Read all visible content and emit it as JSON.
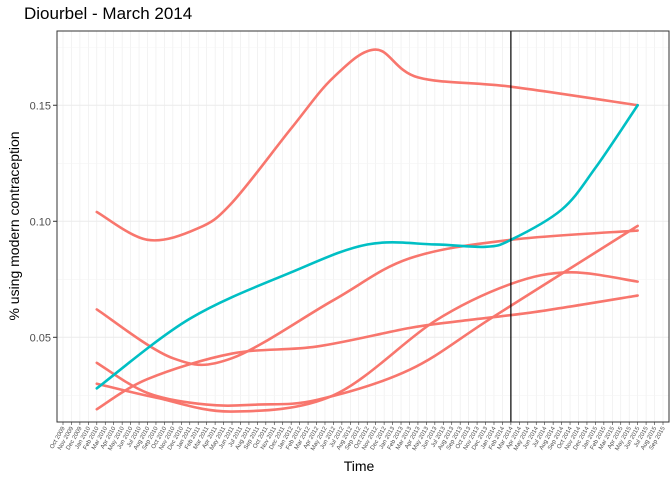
{
  "chart_data": {
    "type": "line",
    "title": "Diourbel - March 2014",
    "xlabel": "Time",
    "ylabel": "% using modern contraception",
    "ylim": [
      0.0135,
      0.182
    ],
    "xlim": [
      "2009-10",
      "2015-09"
    ],
    "yticks": [
      0.05,
      0.1,
      0.15
    ],
    "ytick_labels": [
      "0.05",
      "0.10",
      "0.15"
    ],
    "xticks_monthly": true,
    "vline": "2014-03",
    "grid": true,
    "legend": "none",
    "colors": {
      "survey": "#F8766D",
      "model": "#00BFC4",
      "vline": "#000000",
      "grid_major": "#ebebeb",
      "grid_minor": "#f4f4f4",
      "border": "#333333"
    },
    "series": [
      {
        "kind": "model",
        "color": "#00BFC4",
        "x": [
          "2010-02",
          "2011-01",
          "2012-01",
          "2012-10",
          "2013-06",
          "2013-12",
          "2014-03",
          "2014-09",
          "2015-01",
          "2015-06"
        ],
        "values": [
          0.028,
          0.058,
          0.078,
          0.09,
          0.09,
          0.089,
          0.092,
          0.105,
          0.123,
          0.15
        ]
      },
      {
        "kind": "survey",
        "color": "#F8766D",
        "x": [
          "2010-02",
          "2010-08",
          "2011-02",
          "2011-06",
          "2012-01",
          "2012-06",
          "2012-11",
          "2013-04",
          "2014-03",
          "2015-06"
        ],
        "values": [
          0.104,
          0.092,
          0.097,
          0.108,
          0.14,
          0.162,
          0.174,
          0.162,
          0.158,
          0.15
        ]
      },
      {
        "kind": "survey",
        "color": "#F8766D",
        "x": [
          "2010-02",
          "2010-11",
          "2011-06",
          "2012-06",
          "2013-03",
          "2014-03",
          "2015-06"
        ],
        "values": [
          0.062,
          0.041,
          0.041,
          0.066,
          0.084,
          0.092,
          0.096
        ]
      },
      {
        "kind": "survey",
        "color": "#F8766D",
        "x": [
          "2010-02",
          "2010-08",
          "2011-03",
          "2011-09",
          "2012-04",
          "2013-03",
          "2014-01",
          "2015-06"
        ],
        "values": [
          0.039,
          0.026,
          0.021,
          0.021,
          0.023,
          0.036,
          0.059,
          0.098
        ]
      },
      {
        "kind": "survey",
        "color": "#F8766D",
        "x": [
          "2010-02",
          "2010-09",
          "2011-06",
          "2012-06",
          "2013-06",
          "2014-03",
          "2014-10",
          "2015-06"
        ],
        "values": [
          0.03,
          0.024,
          0.018,
          0.025,
          0.057,
          0.073,
          0.078,
          0.074
        ]
      },
      {
        "kind": "survey",
        "color": "#F8766D",
        "x": [
          "2010-02",
          "2010-08",
          "2011-06",
          "2012-04",
          "2013-03",
          "2013-09",
          "2014-06",
          "2015-06"
        ],
        "values": [
          0.019,
          0.032,
          0.043,
          0.046,
          0.054,
          0.057,
          0.061,
          0.068
        ]
      }
    ]
  }
}
